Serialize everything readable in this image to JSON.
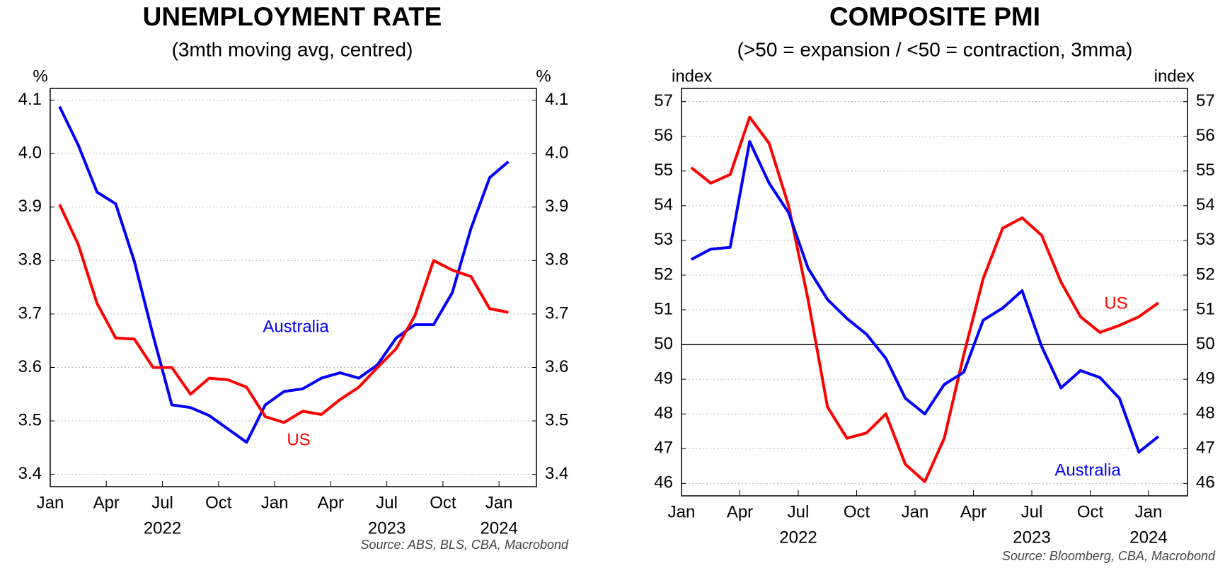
{
  "chart_data": [
    {
      "type": "line",
      "title": "UNEMPLOYMENT RATE",
      "subtitle": "(3mth moving avg, centred)",
      "y_unit": "%",
      "source": "Source: ABS, BLS, CBA, Macrobond",
      "x": [
        "2022-01",
        "2022-02",
        "2022-03",
        "2022-04",
        "2022-05",
        "2022-06",
        "2022-07",
        "2022-08",
        "2022-09",
        "2022-10",
        "2022-11",
        "2022-12",
        "2023-01",
        "2023-02",
        "2023-03",
        "2023-04",
        "2023-05",
        "2023-06",
        "2023-07",
        "2023-08",
        "2023-09",
        "2023-10",
        "2023-11",
        "2023-12",
        "2024-01"
      ],
      "series": [
        {
          "name": "Australia",
          "color": "#0000ff",
          "values": [
            4.088,
            4.016,
            3.928,
            3.906,
            3.798,
            3.66,
            3.53,
            3.525,
            3.51,
            3.485,
            3.46,
            3.53,
            3.555,
            3.56,
            3.58,
            3.59,
            3.58,
            3.605,
            3.655,
            3.68,
            3.68,
            3.74,
            3.86,
            3.955,
            3.985
          ]
        },
        {
          "name": "US",
          "color": "#ff0000",
          "values": [
            3.905,
            3.83,
            3.72,
            3.655,
            3.653,
            3.6,
            3.6,
            3.55,
            3.58,
            3.577,
            3.563,
            3.508,
            3.497,
            3.518,
            3.512,
            3.54,
            3.563,
            3.6,
            3.635,
            3.697,
            3.8,
            3.782,
            3.77,
            3.71,
            3.703
          ]
        }
      ],
      "xlim": [
        "2022-01",
        "2024-03"
      ],
      "xticks": [
        {
          "value": "2022-01",
          "label": "Jan"
        },
        {
          "value": "2022-04",
          "label": "Apr"
        },
        {
          "value": "2022-07",
          "label": "Jul"
        },
        {
          "value": "2022-10",
          "label": "Oct"
        },
        {
          "value": "2023-01",
          "label": "Jan"
        },
        {
          "value": "2023-04",
          "label": "Apr"
        },
        {
          "value": "2023-07",
          "label": "Jul"
        },
        {
          "value": "2023-10",
          "label": "Oct"
        },
        {
          "value": "2024-01",
          "label": "Jan"
        }
      ],
      "year_labels": [
        {
          "value": "2022-07",
          "label": "2022"
        },
        {
          "value": "2023-07",
          "label": "2023"
        },
        {
          "value": "2024-01",
          "label": "2024"
        }
      ],
      "ylim": [
        3.377,
        4.122
      ],
      "yticks": [
        3.4,
        3.5,
        3.6,
        3.7,
        3.8,
        3.9,
        {
          "value": 4,
          "label": "4.0"
        },
        4.1
      ],
      "grid": true
    },
    {
      "type": "line",
      "title": "COMPOSITE PMI",
      "subtitle": "(>50 = expansion / <50 = contraction, 3mma)",
      "y_unit": "index",
      "source": "Source: Bloomberg, CBA, Macrobond",
      "x": [
        "2022-01",
        "2022-02",
        "2022-03",
        "2022-04",
        "2022-05",
        "2022-06",
        "2022-07",
        "2022-08",
        "2022-09",
        "2022-10",
        "2022-11",
        "2022-12",
        "2023-01",
        "2023-02",
        "2023-03",
        "2023-04",
        "2023-05",
        "2023-06",
        "2023-07",
        "2023-08",
        "2023-09",
        "2023-10",
        "2023-11",
        "2023-12",
        "2024-01"
      ],
      "series": [
        {
          "name": "US",
          "color": "#ff0000",
          "values": [
            55.1,
            54.65,
            54.9,
            56.55,
            55.8,
            54.0,
            51.3,
            48.2,
            47.3,
            47.45,
            48.0,
            46.55,
            46.05,
            47.3,
            49.7,
            51.9,
            53.35,
            53.65,
            53.15,
            51.8,
            50.8,
            50.35,
            50.55,
            50.8,
            51.2
          ]
        },
        {
          "name": "Australia",
          "color": "#0000ff",
          "values": [
            52.45,
            52.75,
            52.8,
            55.85,
            54.65,
            53.8,
            52.2,
            51.3,
            50.75,
            50.3,
            49.6,
            48.45,
            48.0,
            48.85,
            49.2,
            50.7,
            51.05,
            51.55,
            49.95,
            48.75,
            49.25,
            49.05,
            48.45,
            46.9,
            47.35
          ]
        }
      ],
      "xlim": [
        "2022-01",
        "2024-03"
      ],
      "xticks": [
        {
          "value": "2022-01",
          "label": "Jan"
        },
        {
          "value": "2022-04",
          "label": "Apr"
        },
        {
          "value": "2022-07",
          "label": "Jul"
        },
        {
          "value": "2022-10",
          "label": "Oct"
        },
        {
          "value": "2023-01",
          "label": "Jan"
        },
        {
          "value": "2023-04",
          "label": "Apr"
        },
        {
          "value": "2023-07",
          "label": "Jul"
        },
        {
          "value": "2023-10",
          "label": "Oct"
        },
        {
          "value": "2024-01",
          "label": "Jan"
        }
      ],
      "year_labels": [
        {
          "value": "2022-07",
          "label": "2022"
        },
        {
          "value": "2023-07",
          "label": "2023"
        },
        {
          "value": "2024-01",
          "label": "2024"
        }
      ],
      "ylim": [
        45.64,
        57.38
      ],
      "yticks": [
        46,
        47,
        48,
        49,
        50,
        51,
        52,
        53,
        54,
        55,
        56,
        57
      ],
      "grid": true,
      "hline": 50
    }
  ]
}
